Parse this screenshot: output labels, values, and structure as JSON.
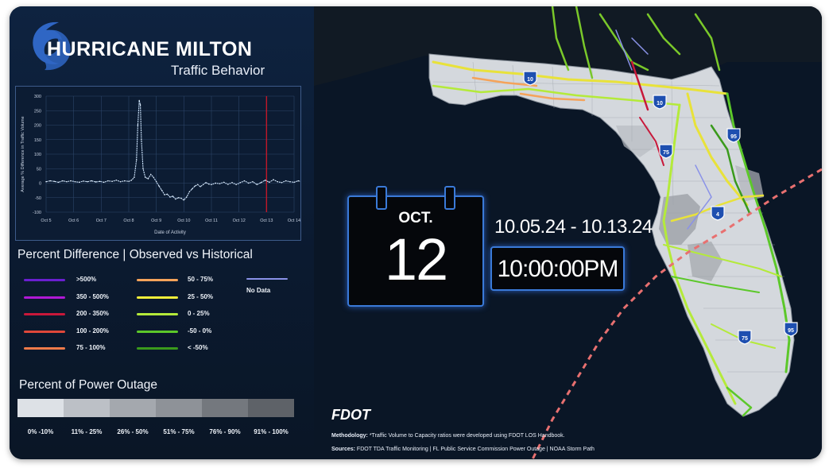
{
  "header": {
    "title": "HURRICANE MILTON",
    "subtitle": "Traffic Behavior"
  },
  "chart": {
    "ylabel": "Average % Difference in Traffic Volume",
    "xlabel": "Date of Activity"
  },
  "chart_data": {
    "type": "line",
    "x": [
      "Oct 5",
      "Oct 6",
      "Oct 7",
      "Oct 8",
      "Oct 9",
      "Oct 10",
      "Oct 11",
      "Oct 12",
      "Oct 13",
      "Oct 14"
    ],
    "xlabel": "Date of Activity",
    "ylabel": "Average % Difference in Traffic Volume",
    "ylim": [
      -100,
      300
    ],
    "yticks": [
      300,
      250,
      200,
      150,
      100,
      50,
      0,
      -50,
      -100
    ],
    "series": [
      {
        "values_day_fraction": [
          [
            0.0,
            5
          ],
          [
            0.15,
            8
          ],
          [
            0.3,
            6
          ],
          [
            0.45,
            3
          ],
          [
            0.6,
            8
          ],
          [
            0.75,
            5
          ],
          [
            0.9,
            8
          ],
          [
            1.05,
            5
          ],
          [
            1.2,
            3
          ],
          [
            1.35,
            7
          ],
          [
            1.5,
            5
          ],
          [
            1.65,
            8
          ],
          [
            1.8,
            4
          ],
          [
            1.95,
            6
          ],
          [
            2.1,
            3
          ],
          [
            2.25,
            8
          ],
          [
            2.4,
            6
          ],
          [
            2.55,
            10
          ],
          [
            2.7,
            5
          ],
          [
            2.85,
            8
          ],
          [
            3.0,
            6
          ],
          [
            3.1,
            10
          ],
          [
            3.2,
            20
          ],
          [
            3.28,
            80
          ],
          [
            3.33,
            200
          ],
          [
            3.38,
            285
          ],
          [
            3.42,
            270
          ],
          [
            3.46,
            150
          ],
          [
            3.52,
            50
          ],
          [
            3.6,
            20
          ],
          [
            3.7,
            15
          ],
          [
            3.8,
            30
          ],
          [
            3.9,
            20
          ],
          [
            4.0,
            5
          ],
          [
            4.1,
            -10
          ],
          [
            4.2,
            -25
          ],
          [
            4.3,
            -40
          ],
          [
            4.4,
            -38
          ],
          [
            4.5,
            -48
          ],
          [
            4.6,
            -45
          ],
          [
            4.7,
            -55
          ],
          [
            4.8,
            -50
          ],
          [
            4.9,
            -52
          ],
          [
            5.0,
            -58
          ],
          [
            5.1,
            -48
          ],
          [
            5.2,
            -30
          ],
          [
            5.3,
            -20
          ],
          [
            5.4,
            -10
          ],
          [
            5.5,
            -5
          ],
          [
            5.6,
            -12
          ],
          [
            5.7,
            -5
          ],
          [
            5.8,
            2
          ],
          [
            5.9,
            -3
          ],
          [
            6.0,
            -5
          ],
          [
            6.15,
            0
          ],
          [
            6.3,
            -2
          ],
          [
            6.45,
            3
          ],
          [
            6.6,
            -4
          ],
          [
            6.75,
            2
          ],
          [
            6.9,
            -5
          ],
          [
            7.05,
            2
          ],
          [
            7.2,
            8
          ],
          [
            7.35,
            0
          ],
          [
            7.5,
            5
          ],
          [
            7.65,
            -5
          ],
          [
            7.8,
            2
          ],
          [
            7.95,
            10
          ],
          [
            8.1,
            3
          ],
          [
            8.25,
            12
          ],
          [
            8.4,
            5
          ],
          [
            8.55,
            2
          ],
          [
            8.7,
            8
          ],
          [
            8.85,
            5
          ],
          [
            9.0,
            3
          ],
          [
            9.15,
            8
          ],
          [
            9.3,
            5
          ],
          [
            9.45,
            2
          ],
          [
            9.6,
            4
          ]
        ]
      }
    ],
    "annotations": [
      {
        "type": "vertical-line",
        "x": "Oct 13",
        "color": "#c0182a"
      }
    ]
  },
  "legend": {
    "title": "Percent Difference | Observed vs Historical",
    "items": [
      {
        "label": ">500%",
        "color": "#6a1fd0"
      },
      {
        "label": "350 - 500%",
        "color": "#b019d6"
      },
      {
        "label": "200 - 350%",
        "color": "#c8183a"
      },
      {
        "label": "100 - 200%",
        "color": "#e0483a"
      },
      {
        "label": "75 - 100%",
        "color": "#f07a4a"
      },
      {
        "label": "50 - 75%",
        "color": "#f5a35a"
      },
      {
        "label": "25 - 50%",
        "color": "#f2ee3a"
      },
      {
        "label": "0 - 25%",
        "color": "#b4ea3a"
      },
      {
        "label": "-50 - 0%",
        "color": "#5cc82a"
      },
      {
        "label": "< -50%",
        "color": "#3a9a1c"
      },
      {
        "label": "No Data",
        "color": "#8a92e8"
      }
    ]
  },
  "outage": {
    "title": "Percent of Power Outage",
    "bins": [
      {
        "label": "0% -10%",
        "color": "#dde1e6"
      },
      {
        "label": "11% - 25%",
        "color": "#bcc0c6"
      },
      {
        "label": "26% - 50%",
        "color": "#a4a8ae"
      },
      {
        "label": "51% - 75%",
        "color": "#8e9298"
      },
      {
        "label": "76% - 90%",
        "color": "#74787e"
      },
      {
        "label": "91% - 100%",
        "color": "#5e6268"
      }
    ]
  },
  "calendar": {
    "month": "OCT.",
    "day": "12"
  },
  "date_range": "10.05.24 - 10.13.24",
  "clock": "10:00:00PM",
  "map": {
    "shields": [
      "10",
      "10",
      "75",
      "95",
      "4",
      "75",
      "95"
    ],
    "storm_path_color": "#e87070"
  },
  "footer": {
    "logo": "FDOT",
    "methodology_label": "Methodology:",
    "methodology_text": " *Traffic Volume to Capacity ratios were developed using FDOT LOS Handbook.",
    "sources_label": "Sources:",
    "sources_text": " FDOT TDA Traffic Monitoring  | FL Public Service Commission Power Outage | NOAA Storm Path"
  }
}
